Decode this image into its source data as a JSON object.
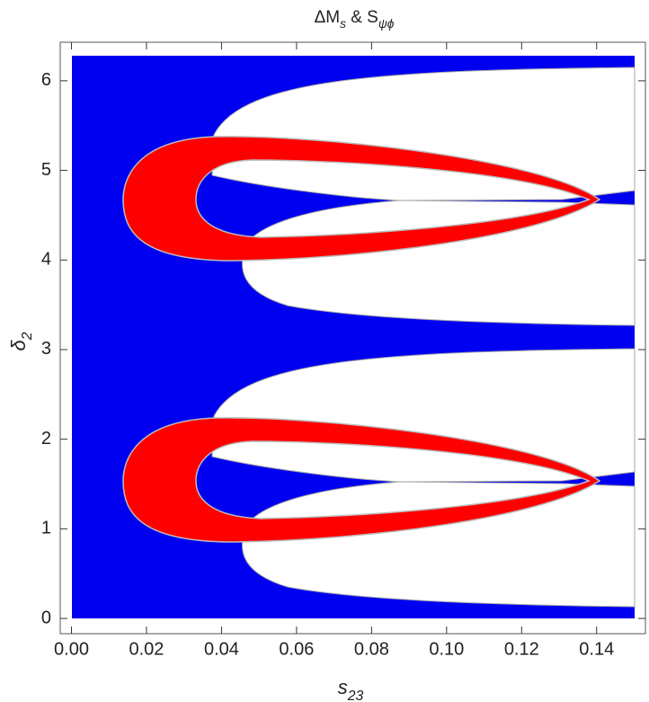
{
  "chart_data": {
    "type": "region",
    "title": [
      "ΔM",
      "s",
      "  &  ",
      "S",
      "ψϕ"
    ],
    "x_label": [
      "s",
      "23"
    ],
    "y_label": [
      "δ",
      "2"
    ],
    "xlim": [
      -0.003,
      0.153
    ],
    "ylim": [
      -0.17,
      6.43
    ],
    "xticks": [
      {
        "value": 0,
        "label": "0.00"
      },
      {
        "value": 0.02,
        "label": "0.02"
      },
      {
        "value": 0.04,
        "label": "0.04"
      },
      {
        "value": 0.06,
        "label": "0.06"
      },
      {
        "value": 0.08,
        "label": "0.08"
      },
      {
        "value": 0.1,
        "label": "0.10"
      },
      {
        "value": 0.12,
        "label": "0.12"
      },
      {
        "value": 0.14,
        "label": "0.14"
      }
    ],
    "yticks": [
      0,
      1,
      2,
      3,
      4,
      5,
      6
    ]
  }
}
